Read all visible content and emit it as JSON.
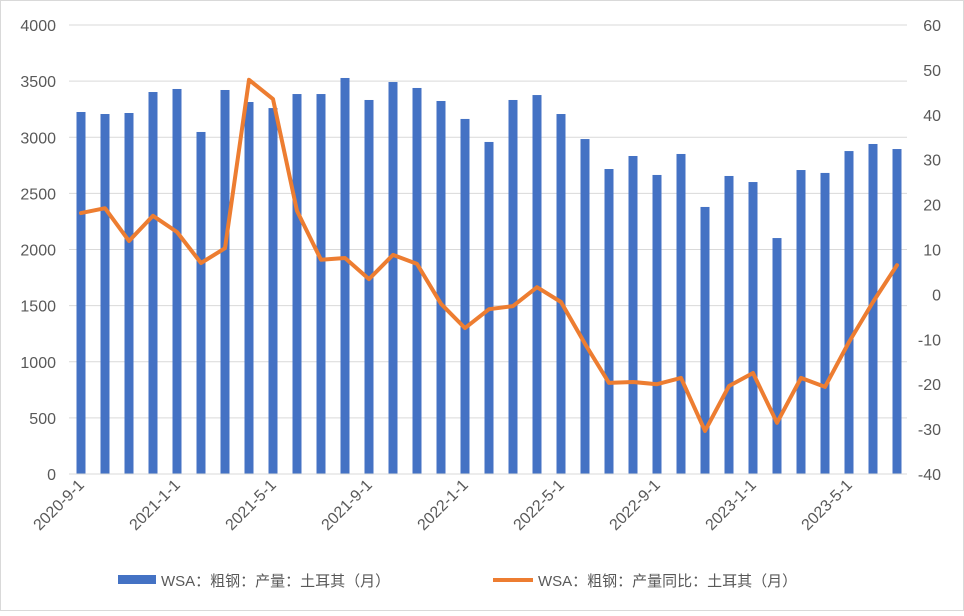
{
  "chart_data": {
    "type": "bar+line",
    "categories": [
      "2020-9-1",
      "2020-10-1",
      "2020-11-1",
      "2020-12-1",
      "2021-1-1",
      "2021-2-1",
      "2021-3-1",
      "2021-4-1",
      "2021-5-1",
      "2021-6-1",
      "2021-7-1",
      "2021-8-1",
      "2021-9-1",
      "2021-10-1",
      "2021-11-1",
      "2021-12-1",
      "2022-1-1",
      "2022-2-1",
      "2022-3-1",
      "2022-4-1",
      "2022-5-1",
      "2022-6-1",
      "2022-7-1",
      "2022-8-1",
      "2022-9-1",
      "2022-10-1",
      "2022-11-1",
      "2022-12-1",
      "2023-1-1",
      "2023-2-1",
      "2023-3-1",
      "2023-4-1",
      "2023-5-1",
      "2023-6-1",
      "2023-7-1"
    ],
    "x_tick_labels": [
      "2020-9-1",
      "2021-1-1",
      "2021-5-1",
      "2021-9-1",
      "2022-1-1",
      "2022-5-1",
      "2022-9-1",
      "2023-1-1",
      "2023-5-1"
    ],
    "series": [
      {
        "name": "WSA：粗钢：产量：土耳其（月）",
        "type": "bar",
        "axis": "left",
        "color": "#4472C4",
        "values": [
          3225,
          3207,
          3216,
          3403,
          3430,
          3047,
          3421,
          3314,
          3260,
          3385,
          3385,
          3528,
          3332,
          3492,
          3439,
          3323,
          3163,
          2958,
          3332,
          3376,
          3207,
          2984,
          2717,
          2833,
          2664,
          2851,
          2379,
          2655,
          2601,
          2102,
          2708,
          2682,
          2877,
          2940,
          2895
        ]
      },
      {
        "name": "WSA：粗钢：产量同比：土耳其（月）",
        "type": "line",
        "axis": "right",
        "color": "#ED7D31",
        "values": [
          18.1,
          19.2,
          11.9,
          17.5,
          13.9,
          7.0,
          10.3,
          47.8,
          43.5,
          18.6,
          7.7,
          8.1,
          3.4,
          8.8,
          6.8,
          -2.1,
          -7.5,
          -3.3,
          -2.6,
          1.6,
          -1.7,
          -11.0,
          -19.7,
          -19.5,
          -20.0,
          -18.6,
          -30.4,
          -20.4,
          -17.5,
          -28.6,
          -18.6,
          -20.6,
          -10.6,
          -1.7,
          6.5
        ]
      }
    ],
    "y_left": {
      "min": 0,
      "max": 4000,
      "step": 500,
      "ticks": [
        "0",
        "500",
        "1000",
        "1500",
        "2000",
        "2500",
        "3000",
        "3500",
        "4000"
      ]
    },
    "y_right": {
      "min": -40,
      "max": 60,
      "step": 10,
      "ticks": [
        "-40",
        "-30",
        "-20",
        "-10",
        "0",
        "10",
        "20",
        "30",
        "40",
        "50",
        "60"
      ]
    },
    "grid": true,
    "legend": "bottom"
  }
}
